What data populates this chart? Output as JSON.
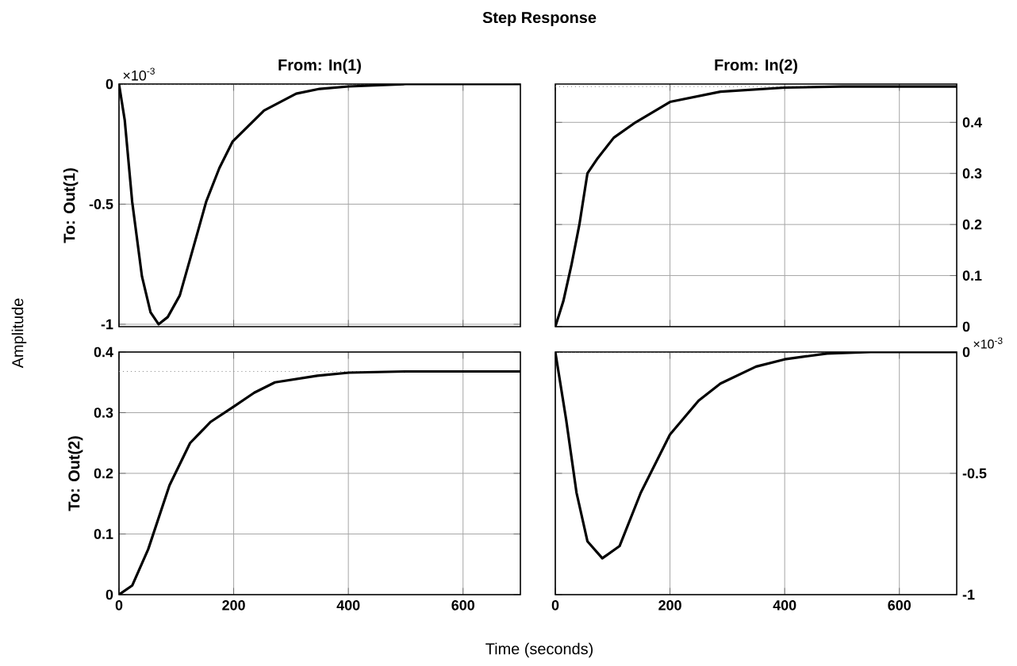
{
  "chart_data": [
    {
      "type": "line",
      "title": "From: In(1)",
      "ylabel": "To: Out(1)",
      "annotations": [
        "Step Response",
        "×10$^{-3}$"
      ],
      "xlim": [
        0,
        700
      ],
      "ylim": [
        -1.01,
        0
      ],
      "xticks": [
        0,
        200,
        400,
        600
      ],
      "yticks": [
        -1,
        -0.5,
        0
      ],
      "grid": true,
      "tick_labels": "y",
      "ref_lines": [
        {
          "axis": "y",
          "value": 0,
          "color": "#808080",
          "line_style": "dotted"
        }
      ],
      "series": [
        {
          "color": "#000000",
          "x": [
            0,
            10,
            23,
            40,
            55,
            69,
            85,
            106,
            125,
            152,
            175,
            198,
            253,
            309,
            350,
            401,
            500,
            600,
            700
          ],
          "values": [
            0,
            -0.15,
            -0.49,
            -0.8,
            -0.95,
            -1.0,
            -0.97,
            -0.88,
            -0.72,
            -0.49,
            -0.35,
            -0.24,
            -0.11,
            -0.04,
            -0.02,
            -0.01,
            0,
            0,
            0
          ]
        }
      ]
    },
    {
      "type": "line",
      "title": "From: In(2)",
      "xlim": [
        0,
        700
      ],
      "ylim": [
        0,
        0.475
      ],
      "xticks": [
        0,
        200,
        400,
        600
      ],
      "yticks": [
        0,
        0.1,
        0.2,
        0.3,
        0.4
      ],
      "grid": true,
      "tick_labels": "y",
      "ref_lines": [
        {
          "axis": "y",
          "value": 0.47,
          "color": "#808080",
          "line_style": "dotted"
        }
      ],
      "series": [
        {
          "color": "#000000",
          "x": [
            0,
            14,
            28,
            42,
            56,
            74,
            102,
            140,
            200,
            288,
            400,
            500,
            600,
            700
          ],
          "values": [
            0,
            0.05,
            0.12,
            0.2,
            0.3,
            0.33,
            0.37,
            0.4,
            0.44,
            0.46,
            0.468,
            0.47,
            0.47,
            0.47
          ]
        }
      ]
    },
    {
      "type": "line",
      "ylabel": "To: Out(2)",
      "annotations": [
        "Amplitude",
        "Time (seconds)"
      ],
      "xlim": [
        0,
        700
      ],
      "ylim": [
        0,
        0.4
      ],
      "xticks": [
        0,
        200,
        400,
        600
      ],
      "yticks": [
        0,
        0.1,
        0.2,
        0.3,
        0.4
      ],
      "grid": true,
      "ref_lines": [
        {
          "axis": "y",
          "value": 0.368,
          "color": "#808080",
          "line_style": "dotted"
        }
      ],
      "series": [
        {
          "color": "#000000",
          "x": [
            0,
            23,
            51,
            88,
            124,
            160,
            200,
            236,
            272,
            346,
            401,
            500,
            600,
            700
          ],
          "values": [
            0,
            0.015,
            0.075,
            0.18,
            0.25,
            0.285,
            0.31,
            0.333,
            0.35,
            0.361,
            0.366,
            0.368,
            0.368,
            0.368
          ]
        }
      ]
    },
    {
      "type": "line",
      "annotations": [
        "×10$^{-3}$"
      ],
      "xlim": [
        0,
        700
      ],
      "ylim": [
        -1,
        0
      ],
      "xticks": [
        0,
        200,
        400,
        600
      ],
      "yticks": [
        -1,
        -0.5,
        0
      ],
      "grid": true,
      "ref_lines": [
        {
          "axis": "y",
          "value": 0,
          "color": "#808080",
          "line_style": "dotted"
        }
      ],
      "series": [
        {
          "color": "#000000",
          "x": [
            0,
            19,
            37,
            56,
            82,
            112,
            149,
            200,
            250,
            288,
            350,
            400,
            474,
            550,
            700
          ],
          "values": [
            0,
            -0.28,
            -0.58,
            -0.78,
            -0.85,
            -0.8,
            -0.58,
            -0.34,
            -0.2,
            -0.13,
            -0.06,
            -0.03,
            -0.006,
            0,
            0
          ]
        }
      ]
    }
  ]
}
